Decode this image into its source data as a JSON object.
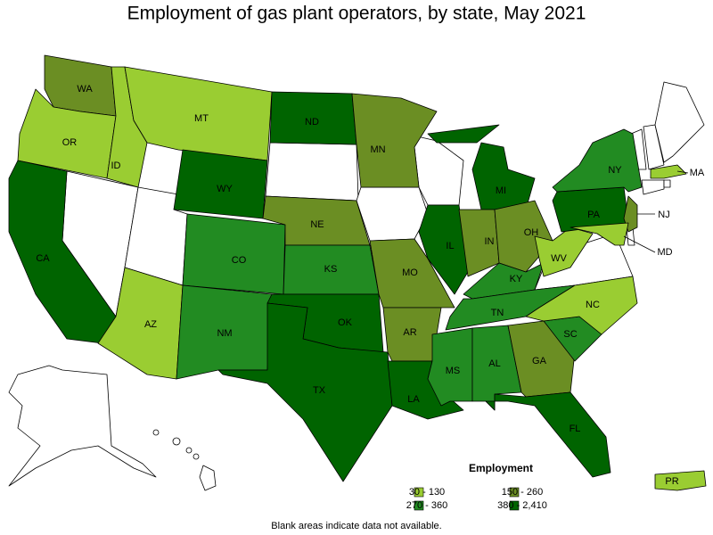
{
  "title": "Employment of gas plant operators, by state, May 2021",
  "states": [
    {
      "label": "WA",
      "color": "#6b8e23"
    },
    {
      "label": "OR",
      "color": "#9acd32"
    },
    {
      "label": "CA",
      "color": "#006400"
    },
    {
      "label": "ID",
      "color": "#9acd32"
    },
    {
      "label": "MT",
      "color": "#9acd32"
    },
    {
      "label": "WY",
      "color": "#006400"
    },
    {
      "label": "AZ",
      "color": "#9acd32"
    },
    {
      "label": "CO",
      "color": "#228b22"
    },
    {
      "label": "NM",
      "color": "#228b22"
    },
    {
      "label": "ND",
      "color": "#006400"
    },
    {
      "label": "NE",
      "color": "#6b8e23"
    },
    {
      "label": "KS",
      "color": "#228b22"
    },
    {
      "label": "OK",
      "color": "#006400"
    },
    {
      "label": "TX",
      "color": "#006400"
    },
    {
      "label": "MN",
      "color": "#6b8e23"
    },
    {
      "label": "MO",
      "color": "#6b8e23"
    },
    {
      "label": "AR",
      "color": "#6b8e23"
    },
    {
      "label": "LA",
      "color": "#006400"
    },
    {
      "label": "IL",
      "color": "#006400"
    },
    {
      "label": "MI",
      "color": "#006400"
    },
    {
      "label": "IN",
      "color": "#6b8e23"
    },
    {
      "label": "OH",
      "color": "#6b8e23"
    },
    {
      "label": "KY",
      "color": "#228b22"
    },
    {
      "label": "TN",
      "color": "#228b22"
    },
    {
      "label": "MS",
      "color": "#228b22"
    },
    {
      "label": "AL",
      "color": "#228b22"
    },
    {
      "label": "GA",
      "color": "#6b8e23"
    },
    {
      "label": "FL",
      "color": "#006400"
    },
    {
      "label": "SC",
      "color": "#228b22"
    },
    {
      "label": "NC",
      "color": "#9acd32"
    },
    {
      "label": "WV",
      "color": "#9acd32"
    },
    {
      "label": "PA",
      "color": "#006400"
    },
    {
      "label": "NY",
      "color": "#228b22"
    },
    {
      "label": "NJ",
      "color": "#6b8e23"
    },
    {
      "label": "MD",
      "color": "#9acd32"
    },
    {
      "label": "MA",
      "color": "#9acd32"
    },
    {
      "label": "PR",
      "color": "#9acd32"
    }
  ],
  "legend": {
    "title": "Employment",
    "items": [
      {
        "label": "30 - 130",
        "color": "#9acd32"
      },
      {
        "label": "150 - 260",
        "color": "#6b8e23"
      },
      {
        "label": "270 - 360",
        "color": "#228b22"
      },
      {
        "label": "380 - 2,410",
        "color": "#006400"
      }
    ]
  },
  "note": "Blank areas indicate data not available."
}
